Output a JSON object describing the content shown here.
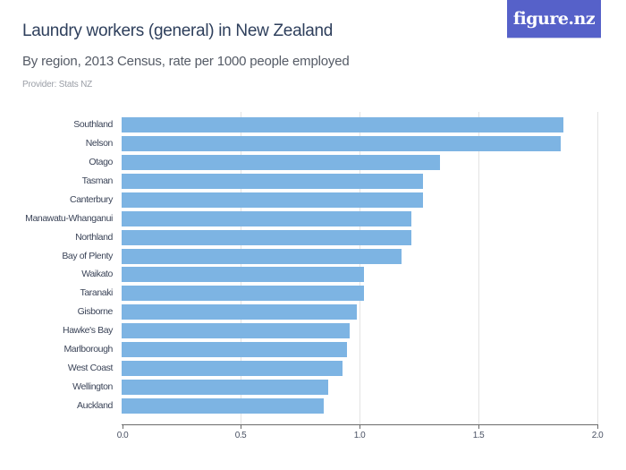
{
  "header": {
    "title": "Laundry workers (general) in New Zealand",
    "subtitle": "By region, 2013 Census, rate per 1000 people employed",
    "provider": "Provider: Stats NZ",
    "logo": "figure.nz"
  },
  "colors": {
    "bar": "#7db4e3",
    "logo_bg": "#5661c9",
    "title": "#2e3f5c"
  },
  "chart_data": {
    "type": "bar",
    "orientation": "horizontal",
    "title": "Laundry workers (general) in New Zealand",
    "subtitle": "By region, 2013 Census, rate per 1000 people employed",
    "xlabel": "",
    "ylabel": "",
    "xlim": [
      0,
      2.0
    ],
    "xticks": [
      "0.0",
      "0.5",
      "1.0",
      "1.5",
      "2.0"
    ],
    "grid": true,
    "legend": null,
    "categories": [
      "Southland",
      "Nelson",
      "Otago",
      "Tasman",
      "Canterbury",
      "Manawatu-Whanganui",
      "Northland",
      "Bay of Plenty",
      "Waikato",
      "Taranaki",
      "Gisborne",
      "Hawke's Bay",
      "Marlborough",
      "West Coast",
      "Wellington",
      "Auckland"
    ],
    "values": [
      1.86,
      1.85,
      1.34,
      1.27,
      1.27,
      1.22,
      1.22,
      1.18,
      1.02,
      1.02,
      0.99,
      0.96,
      0.95,
      0.93,
      0.87,
      0.85
    ]
  }
}
